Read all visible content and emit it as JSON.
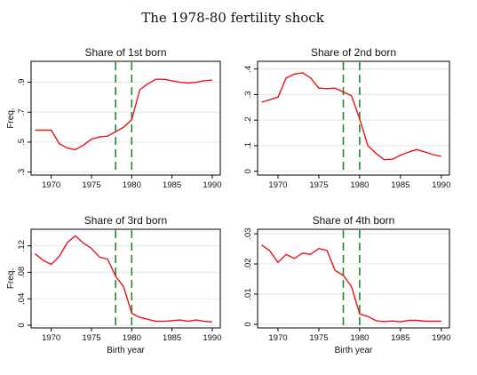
{
  "figure_title": "The 1978-80 fertility shock",
  "colors": {
    "series": "#e8141a",
    "shock_lines": "#1f8a2e",
    "grid": "#dfe7ec",
    "frame": "#000000"
  },
  "chart_data": [
    {
      "type": "line",
      "title": "Share of 1st born",
      "xlabel": "",
      "ylabel": "Freq.",
      "xlim": [
        1967.5,
        1991
      ],
      "ylim": [
        0.28,
        1.04
      ],
      "xticks": [
        1970,
        1975,
        1980,
        1985,
        1990
      ],
      "yticks": [
        0.3,
        0.5,
        0.7,
        0.9
      ],
      "ytick_labels": [
        ".3",
        ".5",
        ".7",
        ".9"
      ],
      "vlines": [
        1978,
        1980
      ],
      "x": [
        1968,
        1970,
        1971,
        1972,
        1973,
        1974,
        1975,
        1976,
        1977,
        1978,
        1979,
        1980,
        1981,
        1982,
        1983,
        1984,
        1985,
        1986,
        1987,
        1988,
        1989,
        1990
      ],
      "values": [
        0.58,
        0.58,
        0.49,
        0.46,
        0.45,
        0.48,
        0.52,
        0.535,
        0.54,
        0.57,
        0.6,
        0.65,
        0.85,
        0.89,
        0.92,
        0.92,
        0.91,
        0.9,
        0.895,
        0.9,
        0.91,
        0.915
      ]
    },
    {
      "type": "line",
      "title": "Share of 2nd born",
      "xlabel": "",
      "ylabel": "",
      "xlim": [
        1967.5,
        1991
      ],
      "ylim": [
        -0.015,
        0.43
      ],
      "xticks": [
        1970,
        1975,
        1980,
        1985,
        1990
      ],
      "yticks": [
        0,
        0.1,
        0.2,
        0.3,
        0.4
      ],
      "ytick_labels": [
        "0",
        ".1",
        ".2",
        ".3",
        ".4"
      ],
      "vlines": [
        1978,
        1980
      ],
      "x": [
        1968,
        1970,
        1971,
        1972,
        1973,
        1974,
        1975,
        1976,
        1977,
        1978,
        1979,
        1980,
        1981,
        1982,
        1983,
        1984,
        1985,
        1986,
        1987,
        1988,
        1989,
        1990
      ],
      "values": [
        0.27,
        0.29,
        0.365,
        0.38,
        0.385,
        0.365,
        0.325,
        0.323,
        0.325,
        0.31,
        0.295,
        0.205,
        0.1,
        0.07,
        0.045,
        0.047,
        0.063,
        0.075,
        0.085,
        0.075,
        0.065,
        0.058
      ]
    },
    {
      "type": "line",
      "title": "Share of 3rd born",
      "xlabel": "Birth year",
      "ylabel": "Freq.",
      "xlim": [
        1967.5,
        1991
      ],
      "ylim": [
        -0.004,
        0.145
      ],
      "xticks": [
        1970,
        1975,
        1980,
        1985,
        1990
      ],
      "yticks": [
        0,
        0.04,
        0.08,
        0.12
      ],
      "ytick_labels": [
        "0",
        ".04",
        ".08",
        ".12"
      ],
      "vlines": [
        1978,
        1980
      ],
      "x": [
        1968,
        1969,
        1970,
        1971,
        1972,
        1973,
        1974,
        1975,
        1976,
        1977,
        1978,
        1979,
        1980,
        1981,
        1982,
        1983,
        1984,
        1985,
        1986,
        1987,
        1988,
        1989,
        1990
      ],
      "values": [
        0.108,
        0.098,
        0.092,
        0.104,
        0.125,
        0.135,
        0.124,
        0.116,
        0.103,
        0.1,
        0.074,
        0.058,
        0.018,
        0.012,
        0.009,
        0.006,
        0.006,
        0.007,
        0.008,
        0.006,
        0.008,
        0.006,
        0.005
      ]
    },
    {
      "type": "line",
      "title": "Share of 4th born",
      "xlabel": "Birth year",
      "ylabel": "",
      "xlim": [
        1967.5,
        1991
      ],
      "ylim": [
        -0.0012,
        0.0315
      ],
      "xticks": [
        1970,
        1975,
        1980,
        1985,
        1990
      ],
      "yticks": [
        0,
        0.01,
        0.02,
        0.03
      ],
      "ytick_labels": [
        "0",
        ".01",
        ".02",
        ".03"
      ],
      "vlines": [
        1978,
        1980
      ],
      "x": [
        1968,
        1969,
        1970,
        1971,
        1972,
        1973,
        1974,
        1975,
        1976,
        1977,
        1978,
        1979,
        1980,
        1981,
        1982,
        1983,
        1984,
        1985,
        1986,
        1987,
        1988,
        1989,
        1990
      ],
      "values": [
        0.0263,
        0.0243,
        0.0205,
        0.0232,
        0.0218,
        0.0236,
        0.0232,
        0.0251,
        0.0245,
        0.0178,
        0.0162,
        0.0125,
        0.0034,
        0.0026,
        0.0012,
        0.0009,
        0.0011,
        0.0008,
        0.0013,
        0.0013,
        0.001,
        0.001,
        0.001
      ]
    }
  ]
}
